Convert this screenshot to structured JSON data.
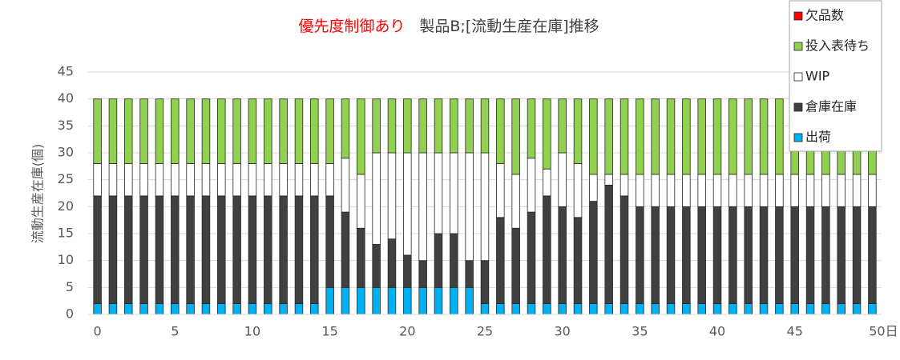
{
  "chart_data": {
    "type": "stacked_bar",
    "title_parts": [
      {
        "text": "優先度制御あり",
        "color": "#ff0000"
      },
      {
        "text": "製品B;[流動生産在庫]推移",
        "color": "#404040"
      }
    ],
    "y_label": "流動生産在庫(個)",
    "x": [
      0,
      1,
      2,
      3,
      4,
      5,
      6,
      7,
      8,
      9,
      10,
      11,
      12,
      13,
      14,
      15,
      16,
      17,
      18,
      19,
      20,
      21,
      22,
      23,
      24,
      25,
      26,
      27,
      28,
      29,
      30,
      31,
      32,
      33,
      34,
      35,
      36,
      37,
      38,
      39,
      40,
      41,
      42,
      43,
      44,
      45,
      46,
      47,
      48,
      49,
      50
    ],
    "xlim": [
      -0.6,
      50.6
    ],
    "xticks": [
      0,
      5,
      10,
      15,
      20,
      25,
      30,
      35,
      40,
      45,
      {
        "value": 50,
        "label": "50日"
      }
    ],
    "ylim": [
      0,
      45
    ],
    "yticks": [
      0,
      5,
      10,
      15,
      20,
      25,
      30,
      35,
      40,
      45
    ],
    "grid": true,
    "legend": "top-right",
    "series": [
      {
        "name": "出荷",
        "color": "#00b0f0",
        "values": [
          2,
          2,
          2,
          2,
          2,
          2,
          2,
          2,
          2,
          2,
          2,
          2,
          2,
          2,
          2,
          5,
          5,
          5,
          5,
          5,
          5,
          5,
          5,
          5,
          5,
          2,
          2,
          2,
          2,
          2,
          2,
          2,
          2,
          2,
          2,
          2,
          2,
          2,
          2,
          2,
          2,
          2,
          2,
          2,
          2,
          2,
          2,
          2,
          2,
          2,
          2
        ]
      },
      {
        "name": "倉庫在庫",
        "color": "#404040",
        "values": [
          20,
          20,
          20,
          20,
          20,
          20,
          20,
          20,
          20,
          20,
          20,
          20,
          20,
          20,
          20,
          17,
          14,
          11,
          8,
          9,
          6,
          5,
          10,
          10,
          5,
          8,
          16,
          14,
          17,
          20,
          18,
          16,
          19,
          22,
          20,
          18,
          18,
          18,
          18,
          18,
          18,
          18,
          18,
          18,
          18,
          18,
          18,
          18,
          18,
          18,
          18
        ]
      },
      {
        "name": "WIP",
        "color": "#ffffff",
        "values": [
          6,
          6,
          6,
          6,
          6,
          6,
          6,
          6,
          6,
          6,
          6,
          6,
          6,
          6,
          6,
          6,
          10,
          10,
          17,
          16,
          19,
          20,
          15,
          15,
          20,
          20,
          10,
          10,
          10,
          5,
          10,
          10,
          5,
          2,
          4,
          6,
          6,
          6,
          6,
          6,
          6,
          6,
          6,
          6,
          6,
          6,
          6,
          6,
          6,
          6,
          6
        ]
      },
      {
        "name": "投入表待ち",
        "color": "#92d050",
        "values": [
          12,
          12,
          12,
          12,
          12,
          12,
          12,
          12,
          12,
          12,
          12,
          12,
          12,
          12,
          12,
          12,
          11,
          14,
          10,
          10,
          10,
          10,
          10,
          10,
          10,
          10,
          12,
          14,
          11,
          13,
          10,
          12,
          14,
          14,
          14,
          14,
          14,
          14,
          14,
          14,
          14,
          14,
          14,
          14,
          14,
          14,
          14,
          14,
          14,
          14,
          14
        ]
      },
      {
        "name": "欠品数",
        "color": "#ff0000",
        "values": [
          0,
          0,
          0,
          0,
          0,
          0,
          0,
          0,
          0,
          0,
          0,
          0,
          0,
          0,
          0,
          0,
          0,
          0,
          0,
          0,
          0,
          0,
          0,
          0,
          0,
          0,
          0,
          0,
          0,
          0,
          0,
          0,
          0,
          0,
          0,
          0,
          0,
          0,
          0,
          0,
          0,
          0,
          0,
          0,
          0,
          0,
          0,
          0,
          0,
          0,
          0
        ]
      }
    ]
  }
}
